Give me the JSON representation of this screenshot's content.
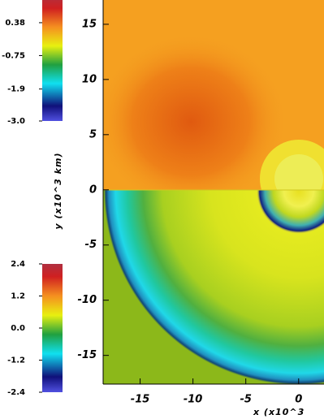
{
  "chart_data": {
    "type": "heatmap",
    "xlabel": "x  (x10^3",
    "ylabel": "y  (x10^3  km)",
    "xlim": [
      -18.5,
      2.4
    ],
    "ylim": [
      -17.6,
      17.2
    ],
    "xticks": [
      -15,
      -10,
      -5,
      0
    ],
    "yticks": [
      -15,
      -10,
      -5,
      0,
      5,
      10,
      15
    ],
    "colorbars": [
      {
        "lim": [
          -3.0,
          1.3
        ],
        "ticks": [
          0.38,
          -0.75,
          -1.9,
          {
            "value": -3.0,
            "label": "-3.0"
          }
        ]
      },
      {
        "lim": [
          -2.4,
          2.4
        ],
        "ticks": [
          2.4,
          1.2,
          {
            "value": 0.0,
            "label": "0.0"
          },
          -1.2,
          -2.4
        ]
      }
    ]
  }
}
